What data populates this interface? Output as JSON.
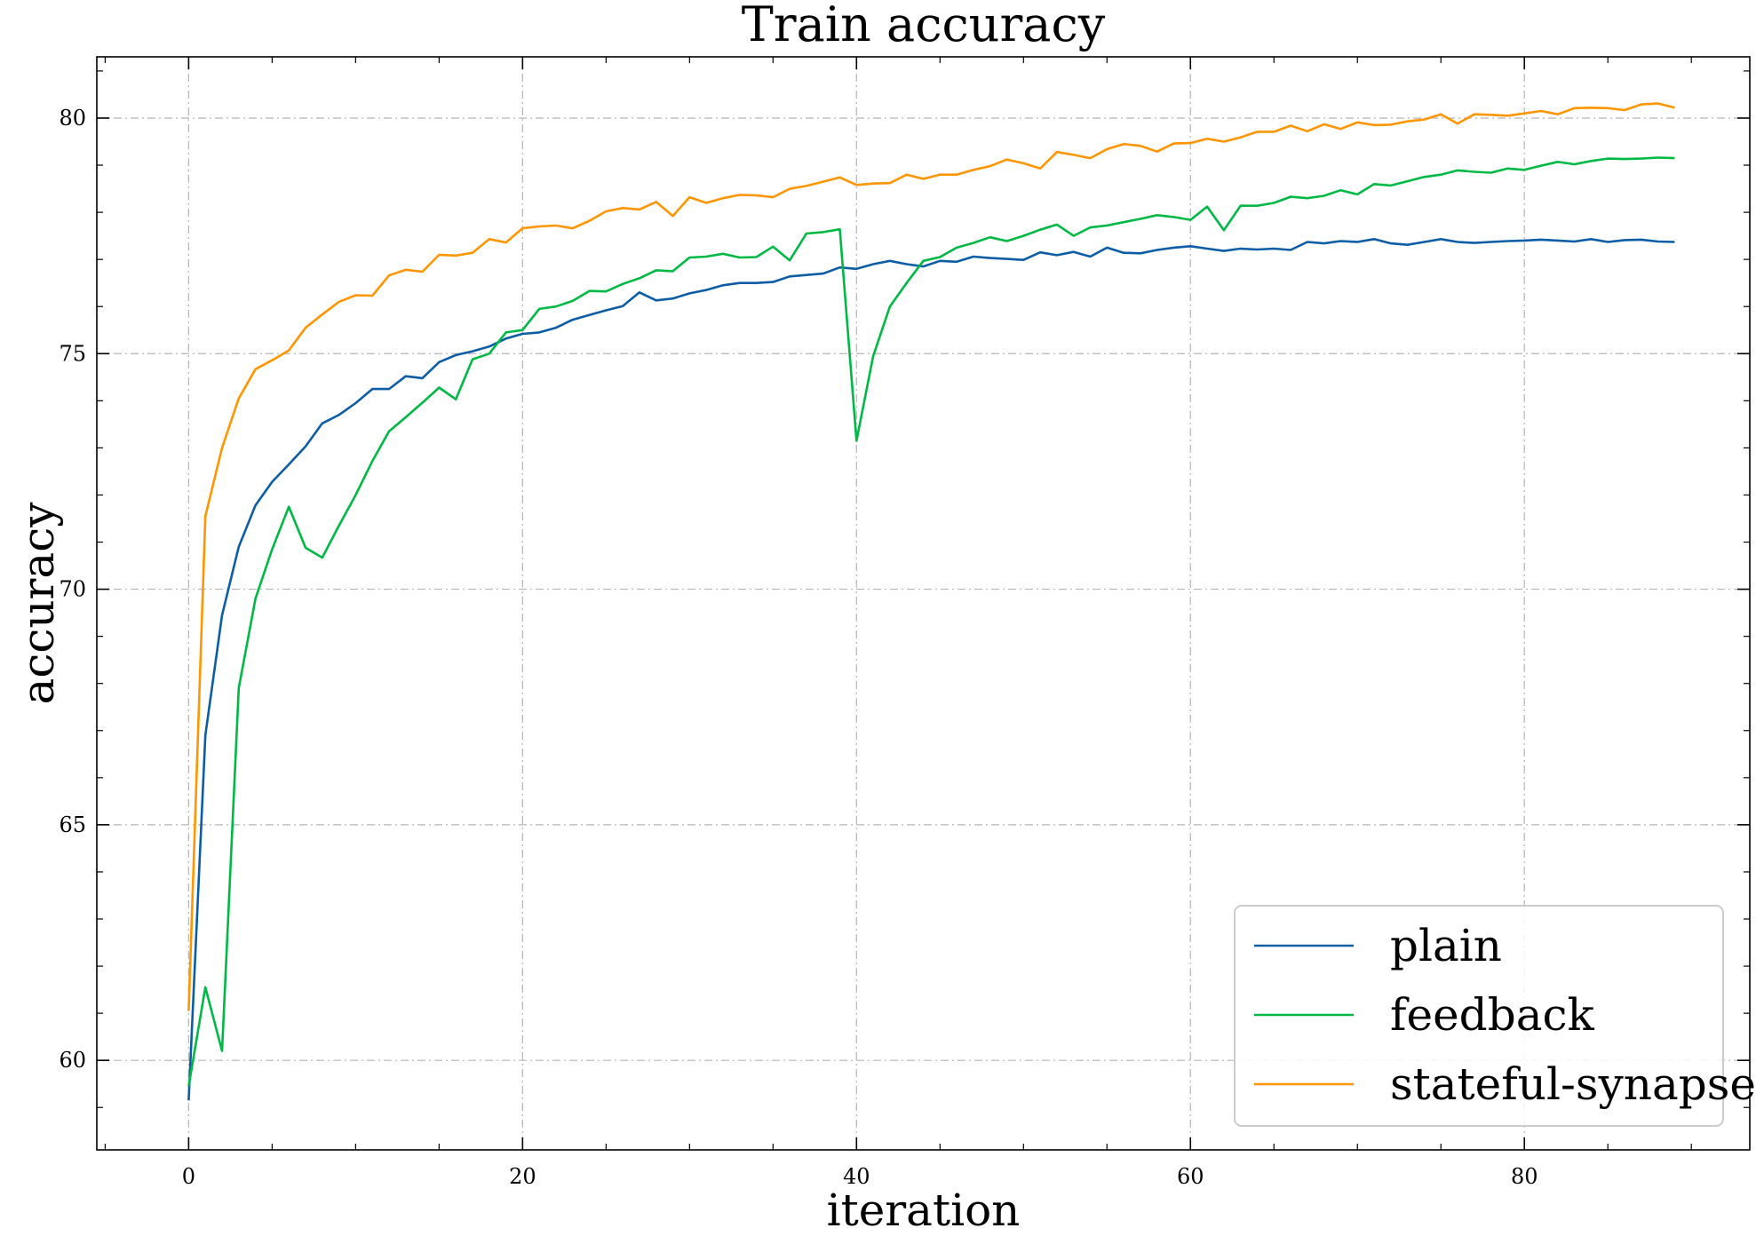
{
  "chart_data": {
    "type": "line",
    "title": "Train accuracy",
    "xlabel": "iteration",
    "ylabel": "accuracy",
    "xlim": [
      -5.5,
      93.5
    ],
    "ylim": [
      58.1,
      81.3
    ],
    "x_ticks": [
      0,
      20,
      40,
      60,
      80
    ],
    "y_ticks": [
      60,
      65,
      70,
      75,
      80
    ],
    "grid": true,
    "legend_position": "lower-right",
    "series": [
      {
        "name": "plain",
        "color": "#0C5DA5",
        "values": [
          59.15,
          66.9,
          69.45,
          70.9,
          71.78,
          72.28,
          72.65,
          73.03,
          73.52,
          73.7,
          73.95,
          74.25,
          74.25,
          74.52,
          74.48,
          74.82,
          74.97,
          75.05,
          75.15,
          75.32,
          75.42,
          75.45,
          75.55,
          75.72,
          75.82,
          75.92,
          76.01,
          76.3,
          76.13,
          76.17,
          76.28,
          76.35,
          76.45,
          76.5,
          76.5,
          76.52,
          76.64,
          76.67,
          76.7,
          76.83,
          76.8,
          76.9,
          76.97,
          76.9,
          76.85,
          76.97,
          76.95,
          77.06,
          77.03,
          77.01,
          76.99,
          77.15,
          77.09,
          77.16,
          77.06,
          77.25,
          77.14,
          77.13,
          77.2,
          77.25,
          77.28,
          77.23,
          77.18,
          77.23,
          77.21,
          77.23,
          77.2,
          77.37,
          77.34,
          77.39,
          77.37,
          77.43,
          77.34,
          77.31,
          77.37,
          77.43,
          77.37,
          77.35,
          77.37,
          77.39,
          77.4,
          77.42,
          77.4,
          77.38,
          77.43,
          77.37,
          77.41,
          77.42,
          77.38,
          77.37
        ]
      },
      {
        "name": "feedback",
        "color": "#00B945",
        "values": [
          59.45,
          61.55,
          60.2,
          67.9,
          69.8,
          70.85,
          71.75,
          70.88,
          70.67,
          71.35,
          72.0,
          72.72,
          73.35,
          73.65,
          73.96,
          74.28,
          74.03,
          74.88,
          75.0,
          75.45,
          75.5,
          75.95,
          76.0,
          76.12,
          76.33,
          76.32,
          76.48,
          76.6,
          76.77,
          76.75,
          77.04,
          77.06,
          77.12,
          77.04,
          77.05,
          77.27,
          76.98,
          77.55,
          77.58,
          77.64,
          73.15,
          74.95,
          76.0,
          76.5,
          76.97,
          77.05,
          77.25,
          77.35,
          77.47,
          77.39,
          77.5,
          77.63,
          77.74,
          77.5,
          77.68,
          77.72,
          77.79,
          77.86,
          77.94,
          77.9,
          77.84,
          78.12,
          77.62,
          78.14,
          78.14,
          78.2,
          78.33,
          78.3,
          78.35,
          78.47,
          78.38,
          78.6,
          78.57,
          78.66,
          78.75,
          78.8,
          78.89,
          78.86,
          78.84,
          78.93,
          78.9,
          78.99,
          79.07,
          79.02,
          79.09,
          79.14,
          79.13,
          79.14,
          79.16,
          79.15
        ]
      },
      {
        "name": "stateful-synapse",
        "color": "#FF9500",
        "values": [
          61.05,
          71.55,
          73.0,
          74.05,
          74.67,
          74.86,
          75.07,
          75.55,
          75.83,
          76.1,
          76.24,
          76.23,
          76.66,
          76.78,
          76.74,
          77.1,
          77.08,
          77.14,
          77.43,
          77.36,
          77.66,
          77.7,
          77.72,
          77.66,
          77.82,
          78.02,
          78.09,
          78.06,
          78.22,
          77.92,
          78.32,
          78.2,
          78.3,
          78.37,
          78.36,
          78.32,
          78.5,
          78.56,
          78.65,
          78.74,
          78.58,
          78.61,
          78.62,
          78.8,
          78.71,
          78.8,
          78.8,
          78.9,
          78.98,
          79.12,
          79.04,
          78.93,
          79.28,
          79.22,
          79.15,
          79.34,
          79.45,
          79.41,
          79.29,
          79.46,
          79.47,
          79.56,
          79.5,
          79.59,
          79.71,
          79.71,
          79.84,
          79.72,
          79.87,
          79.77,
          79.91,
          79.85,
          79.86,
          79.93,
          79.97,
          80.08,
          79.88,
          80.08,
          80.07,
          80.05,
          80.1,
          80.15,
          80.08,
          80.21,
          80.22,
          80.21,
          80.17,
          80.29,
          80.31,
          80.22
        ]
      }
    ]
  }
}
